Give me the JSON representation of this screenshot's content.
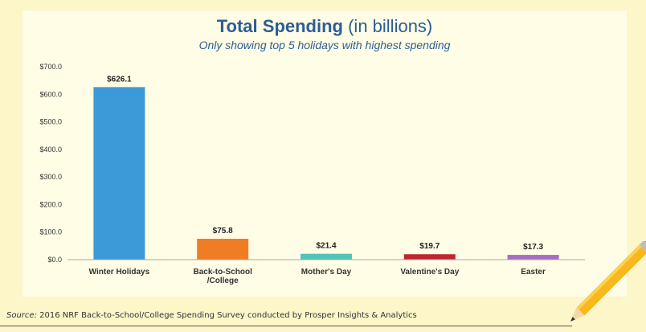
{
  "title_main": "Total Spending",
  "title_sub": "(in billions)",
  "subtitle": "Only showing top 5 holidays with highest spending",
  "source_label": "Source:",
  "source_text": "2016 NRF Back-to-School/College Spending Survey conducted by Prosper Insights & Analytics",
  "colors": {
    "panel_bg": "#fffde6",
    "page_bg": "#fcf6c8",
    "title": "#2d5d93"
  },
  "chart_data": {
    "type": "bar",
    "categories": [
      "Winter Holidays",
      "Back-to-School\n/College",
      "Mother's Day",
      "Valentine's Day",
      "Easter"
    ],
    "values": [
      626.1,
      75.8,
      21.4,
      19.7,
      17.3
    ],
    "data_labels": [
      "$626.1",
      "$75.8",
      "$21.4",
      "$19.7",
      "$17.3"
    ],
    "bar_colors": [
      "#3d9ad8",
      "#f07d25",
      "#4fc4b8",
      "#c0262d",
      "#a86cc4"
    ],
    "ylim": [
      0,
      700
    ],
    "yticks": [
      0,
      100,
      200,
      300,
      400,
      500,
      600,
      700
    ],
    "ytick_labels": [
      "$0.0",
      "$100.0",
      "$200.0",
      "$300.0",
      "$400.0",
      "$500.0",
      "$600.0",
      "$700.0"
    ],
    "title": "Total Spending (in billions)",
    "xlabel": "",
    "ylabel": "",
    "grid": false,
    "legend": "none"
  }
}
